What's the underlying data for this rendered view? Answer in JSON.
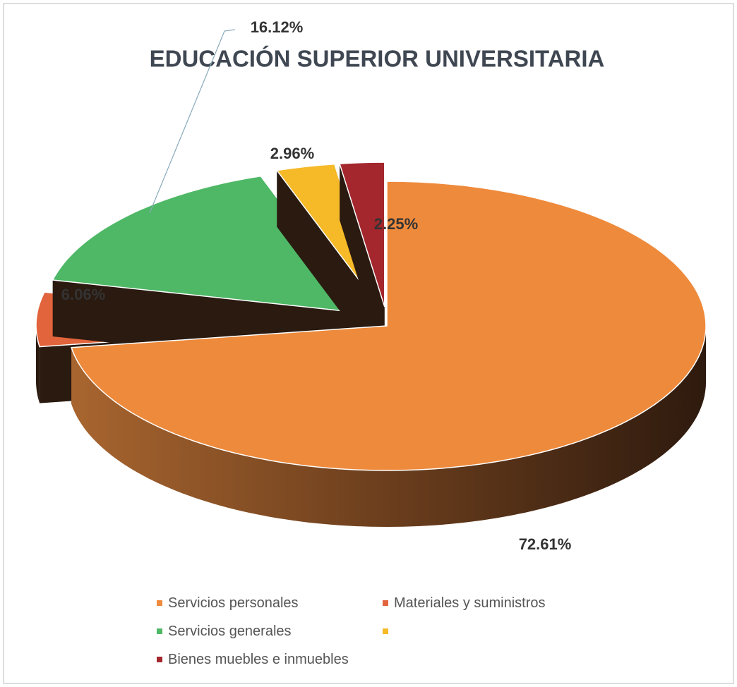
{
  "chart_data": {
    "type": "pie",
    "title": "EDUCACIÓN SUPERIOR UNIVERSITARIA",
    "categories": [
      "Servicios personales",
      "Materiales y suministros",
      "Servicios generales",
      null,
      "Bienes muebles e inmuebles"
    ],
    "values": [
      72.61,
      6.06,
      16.12,
      2.96,
      2.25
    ],
    "value_labels": [
      "72.61%",
      "6.06%",
      "16.12%",
      "2.96%",
      "2.25%"
    ],
    "colors": [
      "#ee8a3c",
      "#e2643c",
      "#4fb866",
      "#f6b928",
      "#a3272d"
    ],
    "legend": "bottom"
  }
}
